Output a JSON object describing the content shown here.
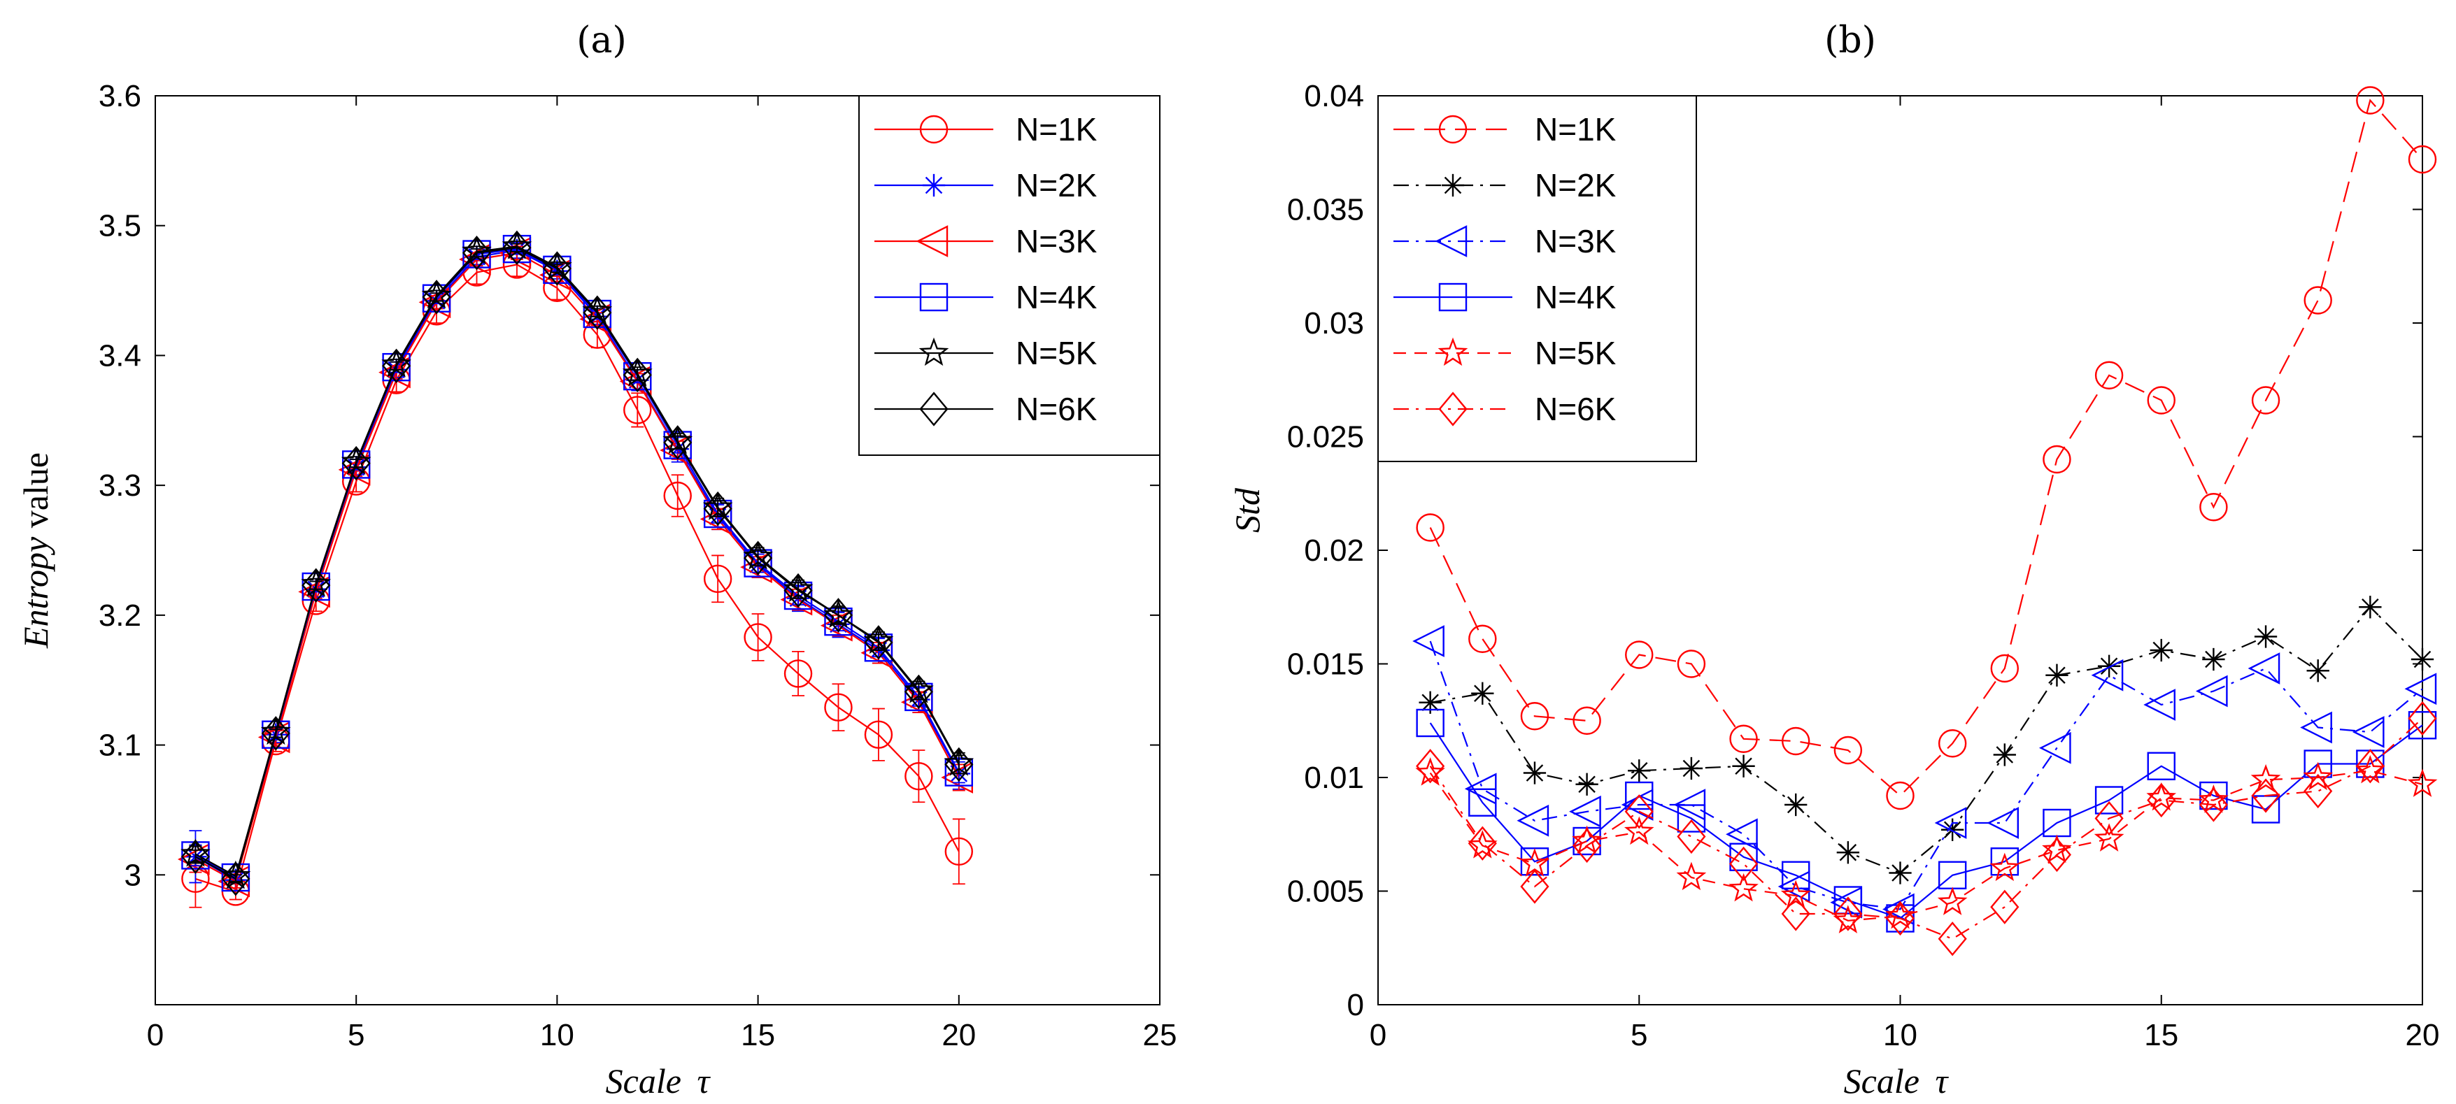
{
  "chart_data": [
    {
      "type": "line",
      "panel_label": "(a)",
      "xlabel_italic": "Scale",
      "xlabel_symbol": "τ",
      "ylabel_italic": "Entropy",
      "ylabel_rest": " value",
      "xlim": [
        0,
        25
      ],
      "ylim": [
        2.9,
        3.6
      ],
      "xticks": [
        "0",
        "5",
        "10",
        "15",
        "20",
        "25"
      ],
      "xtick_values": [
        0,
        5,
        10,
        15,
        20,
        25
      ],
      "yticks": [
        "3",
        "3.1",
        "3.2",
        "3.3",
        "3.4",
        "3.5",
        "3.6"
      ],
      "ytick_values": [
        3.0,
        3.1,
        3.2,
        3.3,
        3.4,
        3.5,
        3.6
      ],
      "legend_position": "top-right",
      "x": [
        1,
        2,
        3,
        4,
        5,
        6,
        7,
        8,
        9,
        10,
        11,
        12,
        13,
        14,
        15,
        16,
        17,
        18,
        19,
        20
      ],
      "series": [
        {
          "name": "N=1K",
          "color": "#ff0000",
          "marker": "circle",
          "dash": "solid",
          "values": [
            2.997,
            2.987,
            3.103,
            3.211,
            3.303,
            3.381,
            3.434,
            3.464,
            3.47,
            3.452,
            3.416,
            3.358,
            3.292,
            3.228,
            3.183,
            3.155,
            3.129,
            3.108,
            3.076,
            3.018
          ],
          "err": [
            0.022,
            0.006,
            0.008,
            0.008,
            0.008,
            0.009,
            0.009,
            0.009,
            0.009,
            0.009,
            0.01,
            0.013,
            0.016,
            0.018,
            0.018,
            0.017,
            0.018,
            0.02,
            0.02,
            0.025
          ]
        },
        {
          "name": "N=2K",
          "color": "#0000ff",
          "marker": "asterisk",
          "dash": "solid",
          "values": [
            3.014,
            2.996,
            3.108,
            3.22,
            3.314,
            3.389,
            3.442,
            3.476,
            3.481,
            3.465,
            3.43,
            3.381,
            3.328,
            3.276,
            3.239,
            3.213,
            3.193,
            3.173,
            3.135,
            3.078
          ],
          "err": [
            0.02,
            0.006,
            0.006,
            0.006,
            0.006,
            0.006,
            0.006,
            0.006,
            0.006,
            0.006,
            0.006,
            0.008,
            0.01,
            0.01,
            0.01,
            0.01,
            0.01,
            0.01,
            0.01,
            0.012
          ]
        },
        {
          "name": "N=3K",
          "color": "#ff0000",
          "marker": "triangle-left",
          "dash": "solid",
          "values": [
            3.012,
            2.995,
            3.106,
            3.218,
            3.312,
            3.387,
            3.441,
            3.474,
            3.479,
            3.462,
            3.428,
            3.38,
            3.327,
            3.274,
            3.237,
            3.212,
            3.192,
            3.171,
            3.133,
            3.075
          ],
          "err": [
            0.01,
            0.005,
            0.005,
            0.005,
            0.005,
            0.005,
            0.005,
            0.005,
            0.005,
            0.005,
            0.005,
            0.006,
            0.007,
            0.008,
            0.008,
            0.008,
            0.008,
            0.008,
            0.008,
            0.01
          ]
        },
        {
          "name": "N=4K",
          "color": "#0000ff",
          "marker": "square",
          "dash": "solid",
          "values": [
            3.015,
            2.998,
            3.108,
            3.222,
            3.316,
            3.391,
            3.444,
            3.478,
            3.482,
            3.466,
            3.432,
            3.384,
            3.331,
            3.278,
            3.24,
            3.215,
            3.195,
            3.175,
            3.137,
            3.079
          ],
          "err": [
            0.008,
            0.004,
            0.004,
            0.004,
            0.004,
            0.004,
            0.004,
            0.004,
            0.004,
            0.004,
            0.004,
            0.005,
            0.006,
            0.007,
            0.007,
            0.007,
            0.007,
            0.007,
            0.007,
            0.008
          ]
        },
        {
          "name": "N=5K",
          "color": "#000000",
          "marker": "star",
          "dash": "solid",
          "values": [
            3.016,
            2.999,
            3.11,
            3.224,
            3.318,
            3.393,
            3.446,
            3.48,
            3.484,
            3.468,
            3.434,
            3.386,
            3.334,
            3.283,
            3.245,
            3.22,
            3.2,
            3.18,
            3.142,
            3.086
          ],
          "err": [
            0.006,
            0.004,
            0.004,
            0.004,
            0.004,
            0.004,
            0.004,
            0.004,
            0.004,
            0.004,
            0.004,
            0.005,
            0.006,
            0.007,
            0.007,
            0.007,
            0.007,
            0.007,
            0.007,
            0.008
          ]
        },
        {
          "name": "N=6K",
          "color": "#000000",
          "marker": "diamond",
          "dash": "solid",
          "values": [
            3.014,
            2.997,
            3.109,
            3.223,
            3.317,
            3.392,
            3.445,
            3.479,
            3.483,
            3.467,
            3.433,
            3.385,
            3.333,
            3.282,
            3.244,
            3.219,
            3.2,
            3.179,
            3.141,
            3.085
          ],
          "err": [
            0.005,
            0.003,
            0.003,
            0.003,
            0.003,
            0.003,
            0.003,
            0.003,
            0.003,
            0.003,
            0.003,
            0.004,
            0.005,
            0.006,
            0.006,
            0.006,
            0.006,
            0.006,
            0.006,
            0.007
          ]
        }
      ]
    },
    {
      "type": "line",
      "panel_label": "(b)",
      "xlabel_italic": "Scale",
      "xlabel_symbol": "τ",
      "ylabel_italic": "Std",
      "ylabel_rest": "",
      "xlim": [
        0,
        20
      ],
      "ylim": [
        0,
        0.04
      ],
      "xticks": [
        "0",
        "5",
        "10",
        "15",
        "20"
      ],
      "xtick_values": [
        0,
        5,
        10,
        15,
        20
      ],
      "yticks": [
        "0",
        "0.005",
        "0.01",
        "0.015",
        "0.02",
        "0.025",
        "0.03",
        "0.035",
        "0.04"
      ],
      "ytick_values": [
        0,
        0.005,
        0.01,
        0.015,
        0.02,
        0.025,
        0.03,
        0.035,
        0.04
      ],
      "legend_position": "top-left",
      "x": [
        1,
        2,
        3,
        4,
        5,
        6,
        7,
        8,
        9,
        10,
        11,
        12,
        13,
        14,
        15,
        16,
        17,
        18,
        19,
        20
      ],
      "series": [
        {
          "name": "N=1K",
          "color": "#ff0000",
          "marker": "circle",
          "dash": "long",
          "values": [
            0.021,
            0.0161,
            0.0127,
            0.0125,
            0.0154,
            0.015,
            0.0117,
            0.0116,
            0.0112,
            0.0092,
            0.0115,
            0.0148,
            0.024,
            0.0277,
            0.0266,
            0.0219,
            0.0266,
            0.031,
            0.0398,
            0.0372
          ]
        },
        {
          "name": "N=2K",
          "color": "#000000",
          "marker": "asterisk",
          "dash": "dashdot",
          "values": [
            0.0133,
            0.0137,
            0.0102,
            0.0097,
            0.0103,
            0.0104,
            0.0105,
            0.0088,
            0.0067,
            0.0058,
            0.0077,
            0.011,
            0.0145,
            0.0149,
            0.0156,
            0.0152,
            0.0162,
            0.0147,
            0.0175,
            0.0152
          ]
        },
        {
          "name": "N=3K",
          "color": "#0000ff",
          "marker": "triangle-left",
          "dash": "dashdot",
          "values": [
            0.016,
            0.0095,
            0.0081,
            0.0085,
            0.0088,
            0.0088,
            0.0075,
            0.0052,
            0.0045,
            0.0042,
            0.008,
            0.008,
            0.0113,
            0.0145,
            0.0132,
            0.0138,
            0.0148,
            0.0122,
            0.012,
            0.0139
          ]
        },
        {
          "name": "N=4K",
          "color": "#0000ff",
          "marker": "square",
          "dash": "solid",
          "values": [
            0.0124,
            0.0089,
            0.0063,
            0.0072,
            0.0092,
            0.0082,
            0.0065,
            0.0057,
            0.0046,
            0.0038,
            0.0057,
            0.0063,
            0.008,
            0.009,
            0.0105,
            0.0092,
            0.0086,
            0.0106,
            0.0106,
            0.0123
          ]
        },
        {
          "name": "N=5K",
          "color": "#ff0000",
          "marker": "star",
          "dash": "dash",
          "values": [
            0.0102,
            0.007,
            0.0062,
            0.0072,
            0.0076,
            0.0056,
            0.0051,
            0.0048,
            0.0037,
            0.0039,
            0.0045,
            0.006,
            0.0068,
            0.0073,
            0.0091,
            0.009,
            0.0099,
            0.01,
            0.0103,
            0.0097
          ]
        },
        {
          "name": "N=6K",
          "color": "#ff0000",
          "marker": "diamond",
          "dash": "dashdot",
          "values": [
            0.0105,
            0.0071,
            0.0052,
            0.007,
            0.0085,
            0.0074,
            0.0062,
            0.004,
            0.004,
            0.0038,
            0.0029,
            0.0043,
            0.0066,
            0.0082,
            0.009,
            0.0088,
            0.0092,
            0.0094,
            0.0105,
            0.0126
          ]
        }
      ]
    }
  ]
}
